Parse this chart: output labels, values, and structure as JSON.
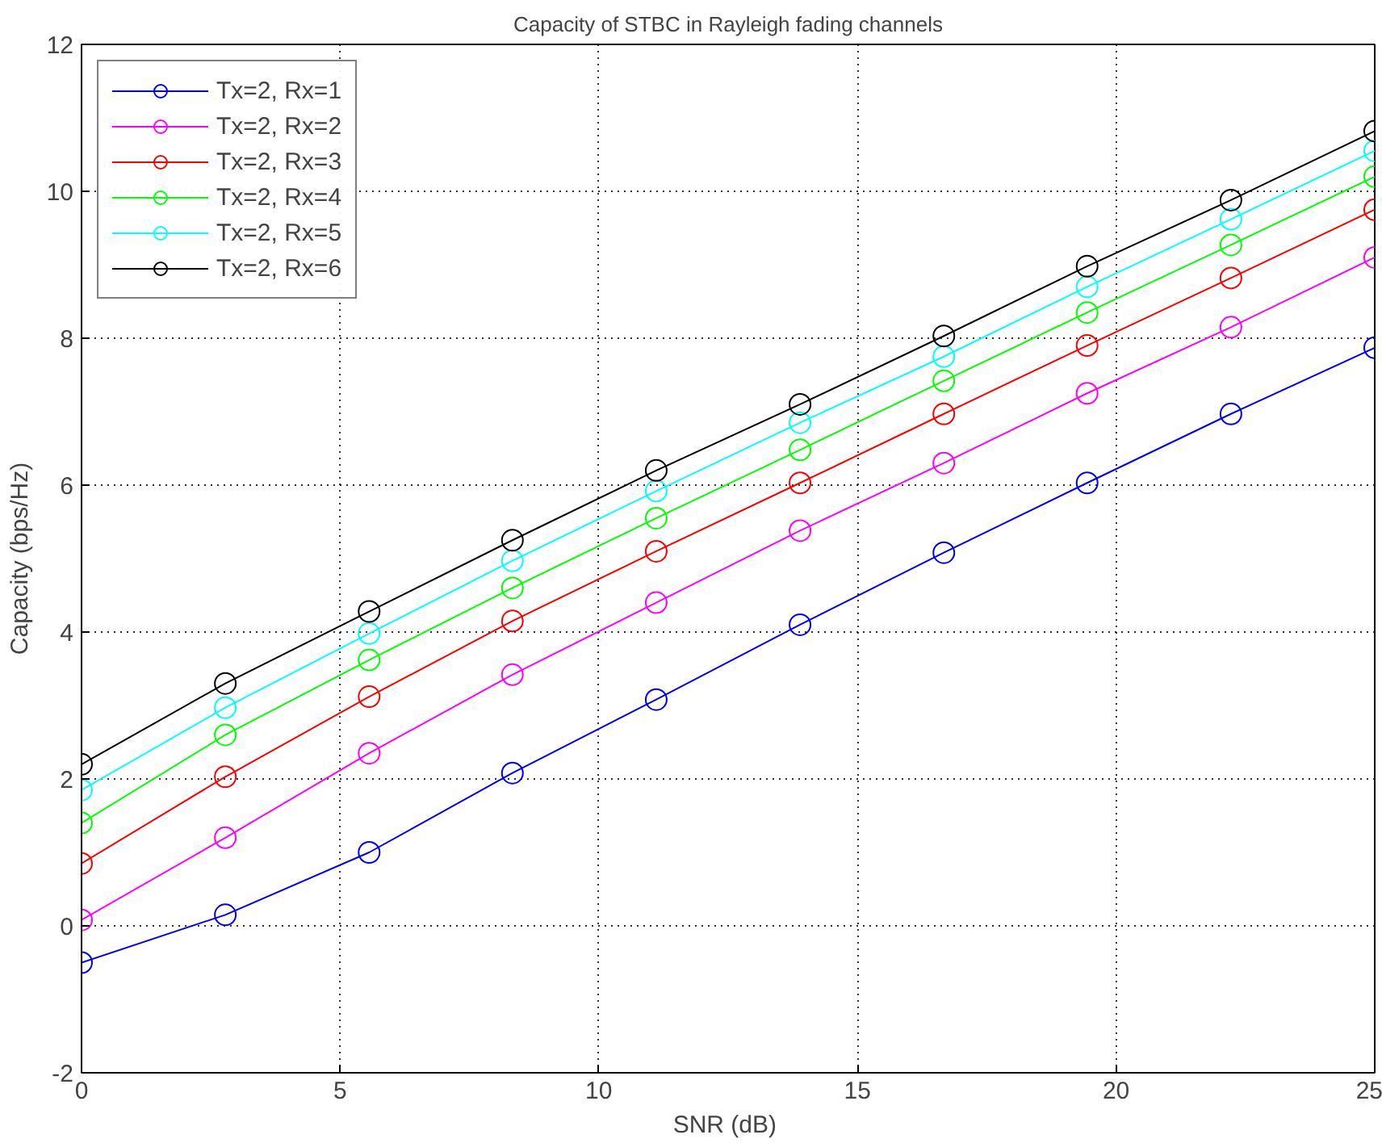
{
  "chart_data": {
    "type": "line",
    "title": "Capacity of STBC in Rayleigh fading channels",
    "xlabel": "SNR  (dB)",
    "ylabel": "Capacity (bps/Hz)",
    "x": [
      0,
      2.78,
      5.56,
      8.33,
      11.11,
      13.89,
      16.67,
      19.44,
      22.22,
      25
    ],
    "series": [
      {
        "name": "Tx=2, Rx=1",
        "color": "#0000ff",
        "values": [
          -0.5,
          0.15,
          1.0,
          2.08,
          3.08,
          4.1,
          5.08,
          6.03,
          6.97,
          7.87
        ]
      },
      {
        "name": "Tx=2, Rx=2",
        "color": "#ff00ff",
        "values": [
          0.08,
          1.2,
          2.35,
          3.42,
          4.4,
          5.38,
          6.3,
          7.25,
          8.15,
          9.1
        ]
      },
      {
        "name": "Tx=2, Rx=3",
        "color": "#ff0000",
        "values": [
          0.85,
          2.03,
          3.12,
          4.15,
          5.1,
          6.03,
          6.97,
          7.9,
          8.82,
          9.75
        ]
      },
      {
        "name": "Tx=2, Rx=4",
        "color": "#00ff00",
        "values": [
          1.4,
          2.6,
          3.62,
          4.6,
          5.55,
          6.48,
          7.42,
          8.35,
          9.27,
          10.2
        ]
      },
      {
        "name": "Tx=2, Rx=5",
        "color": "#00ffff",
        "values": [
          1.85,
          2.97,
          3.98,
          4.97,
          5.92,
          6.85,
          7.75,
          8.7,
          9.62,
          10.55
        ]
      },
      {
        "name": "Tx=2, Rx=6",
        "color": "#000000",
        "values": [
          2.2,
          3.3,
          4.28,
          5.25,
          6.2,
          7.1,
          8.03,
          8.98,
          9.88,
          10.82
        ]
      }
    ],
    "xlim": [
      0,
      25
    ],
    "ylim": [
      -2,
      12
    ],
    "xticks": [
      0,
      5,
      10,
      15,
      20,
      25
    ],
    "yticks": [
      -2,
      0,
      2,
      4,
      6,
      8,
      10,
      12
    ],
    "grid": true,
    "legend": "top left",
    "marker": "circle",
    "line_style": "solid"
  }
}
